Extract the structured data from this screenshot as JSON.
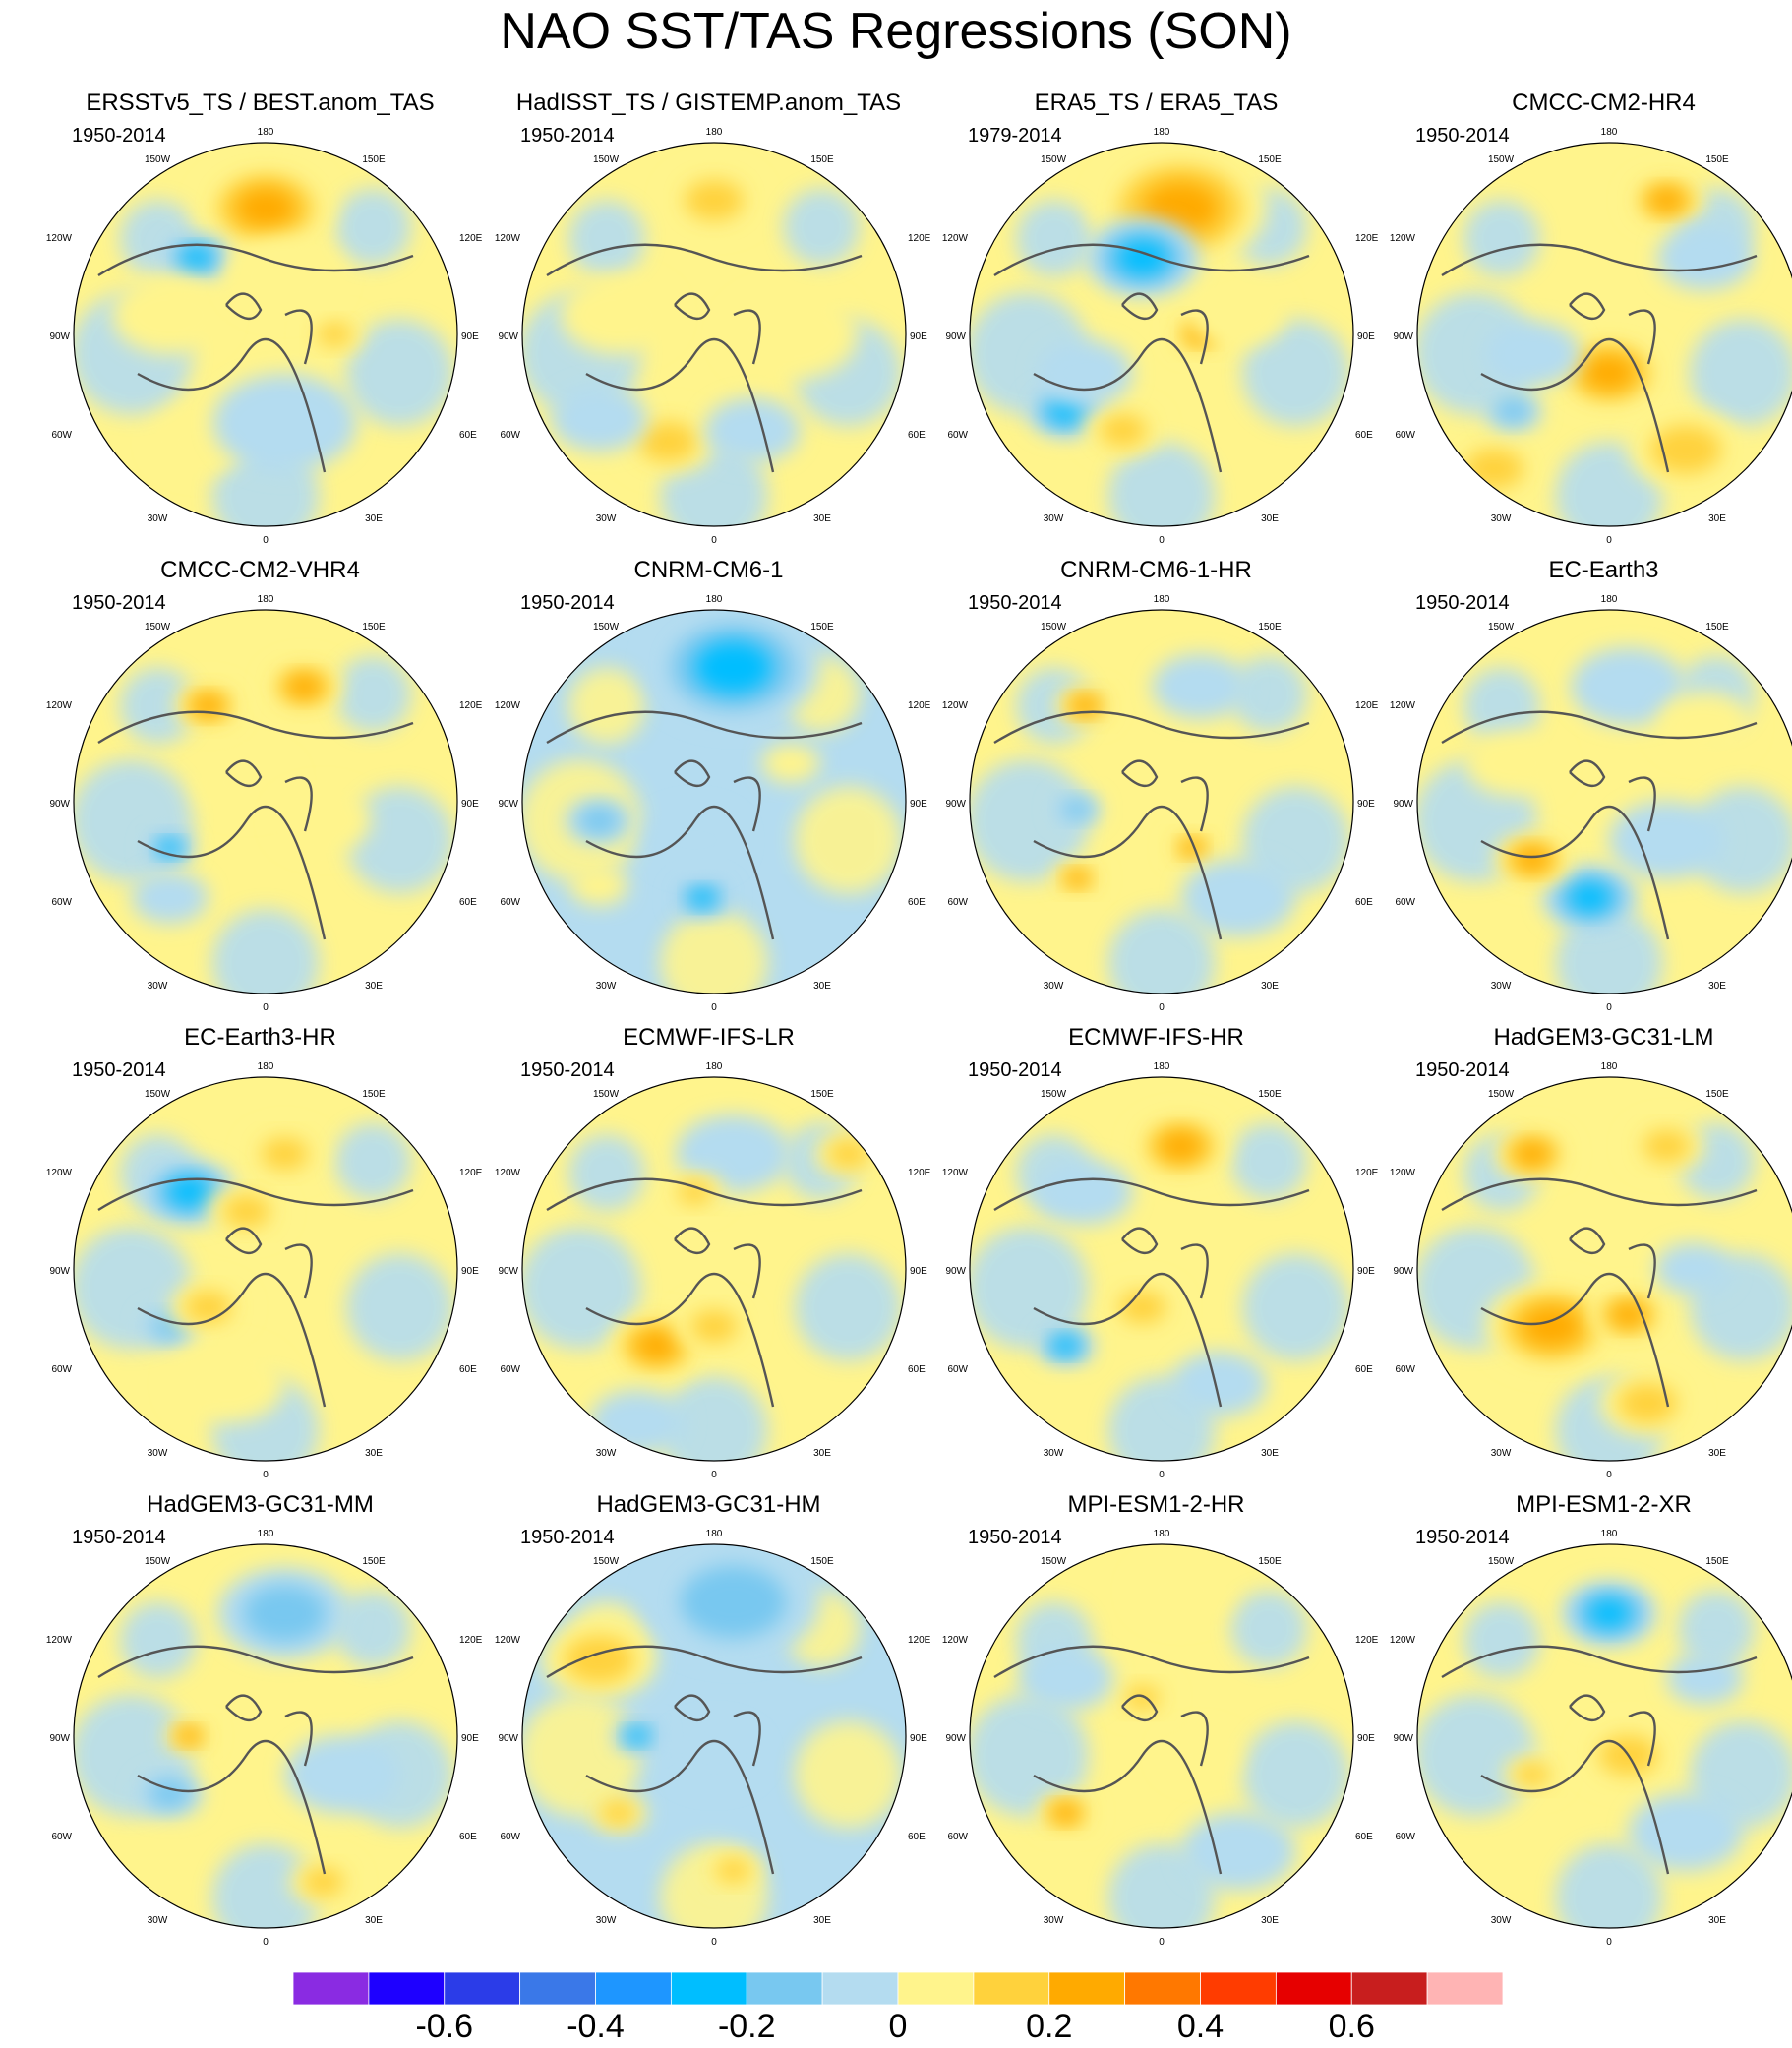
{
  "title": "NAO SST/TAS Regressions (SON)",
  "chart_data": {
    "type": "heatmap",
    "projection": "north-polar-stereographic",
    "variable": "SST/TAS regression onto NAO",
    "season": "SON",
    "longitude_labels": {
      "top": "180",
      "upper_left": "150W",
      "upper_right": "150E",
      "left_high": "120W",
      "right_high": "120E",
      "left": "90W",
      "right": "90E",
      "left_low": "60W",
      "right_low": "60E",
      "lower_left": "30W",
      "lower_right": "30E",
      "bottom": "0"
    },
    "colorbar": {
      "tick_labels": [
        "-0.6",
        "-0.4",
        "-0.2",
        "0",
        "0.2",
        "0.4",
        "0.6"
      ],
      "levels": [
        -0.7,
        -0.6,
        -0.5,
        -0.4,
        -0.3,
        -0.2,
        -0.1,
        0,
        0.1,
        0.2,
        0.3,
        0.4,
        0.5,
        0.6,
        0.7
      ],
      "colors": [
        "#8a2be2",
        "#1e00ff",
        "#2b3ce8",
        "#3a78e8",
        "#1e96ff",
        "#00beff",
        "#78c8f0",
        "#b4dcf0",
        "#fff48c",
        "#ffd23c",
        "#ffaa00",
        "#ff7800",
        "#ff3c00",
        "#e60000",
        "#c81e1e",
        "#ffb4b4"
      ]
    },
    "panels": [
      {
        "title": "ERSSTv5_TS / BEST.anom_TAS",
        "period": "1950-2014",
        "pattern": "mixed",
        "features": [
          [
            0.5,
            0.17,
            0.14,
            0.3
          ],
          [
            0.32,
            0.3,
            0.07,
            -0.3
          ],
          [
            0.25,
            0.45,
            0.12,
            0.12
          ],
          [
            0.33,
            0.78,
            0.1,
            0.12
          ],
          [
            0.55,
            0.73,
            0.15,
            -0.15
          ],
          [
            0.68,
            0.5,
            0.06,
            0.2
          ],
          [
            0.55,
            0.35,
            0.12,
            0.12
          ]
        ]
      },
      {
        "title": "HadISST_TS / GISTEMP.anom_TAS",
        "period": "1950-2014",
        "pattern": "mixed",
        "features": [
          [
            0.5,
            0.15,
            0.1,
            0.2
          ],
          [
            0.38,
            0.78,
            0.1,
            0.2
          ],
          [
            0.6,
            0.75,
            0.1,
            -0.15
          ],
          [
            0.25,
            0.45,
            0.12,
            0.12
          ],
          [
            0.7,
            0.5,
            0.14,
            0.12
          ],
          [
            0.2,
            0.72,
            0.1,
            -0.15
          ]
        ]
      },
      {
        "title": "ERA5_TS / ERA5_TAS",
        "period": "1979-2014",
        "pattern": "mixed",
        "features": [
          [
            0.55,
            0.17,
            0.18,
            0.25
          ],
          [
            0.45,
            0.3,
            0.12,
            -0.3
          ],
          [
            0.6,
            0.5,
            0.06,
            0.25
          ],
          [
            0.25,
            0.7,
            0.08,
            -0.25
          ],
          [
            0.4,
            0.75,
            0.08,
            0.2
          ],
          [
            0.3,
            0.6,
            0.1,
            -0.15
          ],
          [
            0.7,
            0.45,
            0.1,
            0.12
          ]
        ]
      },
      {
        "title": "CMCC-CM2-HR4",
        "period": "1950-2014",
        "pattern": "warm",
        "features": [
          [
            0.65,
            0.15,
            0.08,
            0.3
          ],
          [
            0.5,
            0.6,
            0.12,
            0.25
          ],
          [
            0.7,
            0.8,
            0.12,
            0.2
          ],
          [
            0.3,
            0.55,
            0.1,
            -0.12
          ],
          [
            0.2,
            0.85,
            0.1,
            0.2
          ],
          [
            0.25,
            0.7,
            0.06,
            -0.2
          ],
          [
            0.75,
            0.3,
            0.1,
            -0.1
          ]
        ]
      },
      {
        "title": "CMCC-CM2-VHR4",
        "period": "1950-2014",
        "pattern": "mixed",
        "features": [
          [
            0.35,
            0.25,
            0.07,
            0.25
          ],
          [
            0.6,
            0.2,
            0.08,
            0.25
          ],
          [
            0.45,
            0.45,
            0.1,
            0.12
          ],
          [
            0.25,
            0.75,
            0.08,
            -0.15
          ],
          [
            0.65,
            0.55,
            0.1,
            0.12
          ],
          [
            0.25,
            0.62,
            0.05,
            -0.25
          ]
        ]
      },
      {
        "title": "CNRM-CM6-1",
        "period": "1950-2014",
        "pattern": "cool",
        "features": [
          [
            0.55,
            0.15,
            0.18,
            -0.25
          ],
          [
            0.2,
            0.72,
            0.06,
            0.15
          ],
          [
            0.47,
            0.75,
            0.06,
            -0.25
          ],
          [
            0.2,
            0.55,
            0.07,
            -0.2
          ],
          [
            0.7,
            0.4,
            0.06,
            0.12
          ],
          [
            0.45,
            0.6,
            0.1,
            -0.15
          ]
        ]
      },
      {
        "title": "CNRM-CM6-1-HR",
        "period": "1950-2014",
        "pattern": "mixed",
        "features": [
          [
            0.3,
            0.25,
            0.06,
            0.25
          ],
          [
            0.6,
            0.2,
            0.1,
            -0.15
          ],
          [
            0.28,
            0.7,
            0.05,
            0.35
          ],
          [
            0.58,
            0.62,
            0.05,
            0.25
          ],
          [
            0.7,
            0.75,
            0.12,
            -0.12
          ],
          [
            0.28,
            0.52,
            0.05,
            -0.2
          ]
        ]
      },
      {
        "title": "EC-Earth3",
        "period": "1950-2014",
        "pattern": "mixed",
        "features": [
          [
            0.55,
            0.2,
            0.12,
            -0.15
          ],
          [
            0.45,
            0.75,
            0.1,
            -0.25
          ],
          [
            0.25,
            0.4,
            0.1,
            0.12
          ],
          [
            0.3,
            0.65,
            0.08,
            0.25
          ],
          [
            0.65,
            0.6,
            0.12,
            -0.1
          ],
          [
            0.75,
            0.3,
            0.1,
            0.12
          ]
        ]
      },
      {
        "title": "EC-Earth3-HR",
        "period": "1950-2014",
        "pattern": "warm",
        "features": [
          [
            0.3,
            0.3,
            0.1,
            -0.25
          ],
          [
            0.55,
            0.2,
            0.08,
            0.2
          ],
          [
            0.25,
            0.65,
            0.06,
            -0.2
          ],
          [
            0.35,
            0.6,
            0.08,
            0.2
          ],
          [
            0.45,
            0.35,
            0.08,
            0.2
          ],
          [
            0.4,
            0.8,
            0.12,
            0.1
          ]
        ]
      },
      {
        "title": "ECMWF-IFS-LR",
        "period": "1950-2014",
        "pattern": "warm",
        "features": [
          [
            0.55,
            0.2,
            0.12,
            -0.15
          ],
          [
            0.35,
            0.7,
            0.1,
            0.25
          ],
          [
            0.5,
            0.65,
            0.08,
            0.2
          ],
          [
            0.45,
            0.3,
            0.06,
            0.2
          ],
          [
            0.85,
            0.2,
            0.07,
            0.2
          ],
          [
            0.3,
            0.9,
            0.1,
            -0.12
          ]
        ]
      },
      {
        "title": "ECMWF-IFS-HR",
        "period": "1950-2014",
        "pattern": "warm",
        "features": [
          [
            0.55,
            0.18,
            0.1,
            0.25
          ],
          [
            0.25,
            0.7,
            0.06,
            -0.25
          ],
          [
            0.45,
            0.6,
            0.08,
            0.2
          ],
          [
            0.3,
            0.3,
            0.1,
            -0.12
          ],
          [
            0.65,
            0.8,
            0.1,
            -0.12
          ]
        ]
      },
      {
        "title": "HadGEM3-GC31-LM",
        "period": "1950-2014",
        "pattern": "warm",
        "features": [
          [
            0.3,
            0.2,
            0.08,
            0.25
          ],
          [
            0.65,
            0.18,
            0.08,
            0.2
          ],
          [
            0.35,
            0.65,
            0.14,
            0.25
          ],
          [
            0.55,
            0.62,
            0.08,
            0.25
          ],
          [
            0.72,
            0.5,
            0.08,
            -0.15
          ],
          [
            0.6,
            0.85,
            0.1,
            0.2
          ]
        ]
      },
      {
        "title": "HadGEM3-GC31-MM",
        "period": "1950-2014",
        "pattern": "warm",
        "features": [
          [
            0.55,
            0.18,
            0.14,
            -0.2
          ],
          [
            0.3,
            0.5,
            0.05,
            0.3
          ],
          [
            0.25,
            0.65,
            0.07,
            -0.2
          ],
          [
            0.7,
            0.6,
            0.12,
            -0.15
          ],
          [
            0.65,
            0.88,
            0.07,
            0.2
          ]
        ]
      },
      {
        "title": "HadGEM3-GC31-HM",
        "period": "1950-2014",
        "pattern": "cool",
        "features": [
          [
            0.55,
            0.15,
            0.18,
            -0.2
          ],
          [
            0.2,
            0.3,
            0.12,
            0.2
          ],
          [
            0.3,
            0.5,
            0.05,
            -0.3
          ],
          [
            0.5,
            0.55,
            0.1,
            -0.15
          ],
          [
            0.25,
            0.7,
            0.06,
            0.2
          ],
          [
            0.55,
            0.85,
            0.06,
            0.2
          ]
        ]
      },
      {
        "title": "MPI-ESM1-2-HR",
        "period": "1950-2014",
        "pattern": "warm",
        "features": [
          [
            0.55,
            0.12,
            0.1,
            0.15
          ],
          [
            0.45,
            0.4,
            0.06,
            0.2
          ],
          [
            0.25,
            0.7,
            0.06,
            0.25
          ],
          [
            0.6,
            0.55,
            0.08,
            0.12
          ],
          [
            0.7,
            0.8,
            0.12,
            -0.12
          ],
          [
            0.25,
            0.35,
            0.1,
            -0.12
          ]
        ]
      },
      {
        "title": "MPI-ESM1-2-XR",
        "period": "1950-2014",
        "pattern": "warm",
        "features": [
          [
            0.5,
            0.18,
            0.1,
            -0.25
          ],
          [
            0.3,
            0.6,
            0.06,
            0.2
          ],
          [
            0.55,
            0.55,
            0.1,
            0.2
          ],
          [
            0.7,
            0.75,
            0.12,
            -0.12
          ],
          [
            0.75,
            0.35,
            0.08,
            -0.12
          ]
        ]
      }
    ]
  }
}
